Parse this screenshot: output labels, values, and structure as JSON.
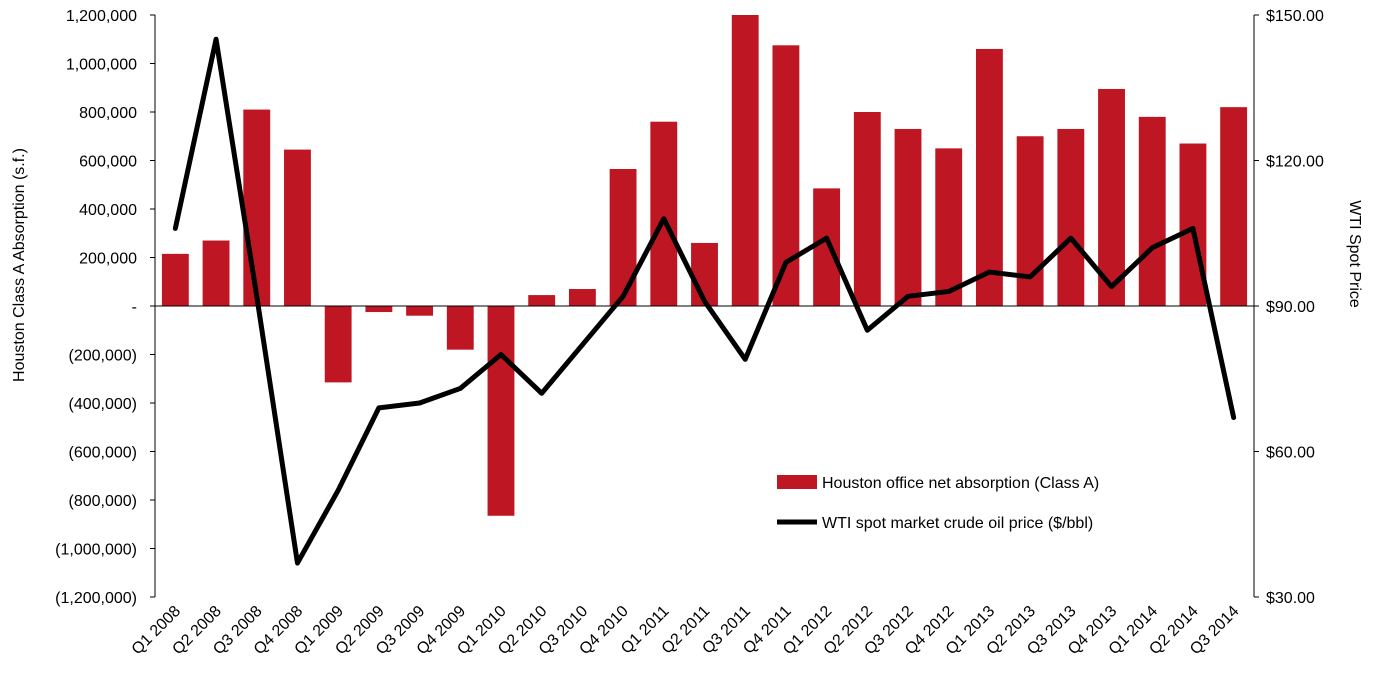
{
  "chart_data": {
    "type": "bar",
    "categories": [
      "Q1 2008",
      "Q2 2008",
      "Q3 2008",
      "Q4 2008",
      "Q1 2009",
      "Q2 2009",
      "Q3 2009",
      "Q4 2009",
      "Q1 2010",
      "Q2 2010",
      "Q3 2010",
      "Q4 2010",
      "Q1 2011",
      "Q2 2011",
      "Q3 2011",
      "Q4 2011",
      "Q1 2012",
      "Q2 2012",
      "Q3 2012",
      "Q4 2012",
      "Q1 2013",
      "Q2 2013",
      "Q3 2013",
      "Q4 2013",
      "Q1 2014",
      "Q2 2014",
      "Q3 2014"
    ],
    "series": [
      {
        "name": "Houston office net absorption (Class A)",
        "type": "bar",
        "axis": "left",
        "color": "#BE1622",
        "values": [
          215000,
          270000,
          810000,
          645000,
          -315000,
          -25000,
          -40000,
          -180000,
          -865000,
          45000,
          70000,
          565000,
          760000,
          260000,
          1200000,
          1075000,
          485000,
          800000,
          730000,
          650000,
          1060000,
          700000,
          730000,
          895000,
          780000,
          670000,
          820000
        ]
      },
      {
        "name": "WTI spot market crude oil price ($/bbl)",
        "type": "line",
        "axis": "right",
        "color": "#000000",
        "values": [
          106,
          145,
          92,
          37,
          52,
          69,
          70,
          73,
          80,
          72,
          82,
          92,
          108,
          91,
          79,
          99,
          104,
          85,
          92,
          93,
          97,
          96,
          104,
          94,
          102,
          106,
          67
        ]
      }
    ],
    "axes": {
      "left": {
        "label": "Houston Class A Absorption (s.f.)",
        "min": -1200000,
        "max": 1200000,
        "ticks": [
          1200000,
          1000000,
          800000,
          600000,
          400000,
          200000,
          0,
          -200000,
          -400000,
          -600000,
          -800000,
          -1000000,
          -1200000
        ],
        "tick_labels": [
          "1,200,000",
          "1,000,000",
          "800,000",
          "600,000",
          "400,000",
          "200,000",
          "-",
          "(200,000)",
          "(400,000)",
          "(600,000)",
          "(800,000)",
          "(1,000,000)",
          "(1,200,000)"
        ]
      },
      "right": {
        "label": "WTI Spot Price",
        "min": 30,
        "max": 150,
        "ticks": [
          150,
          120,
          90,
          60,
          30
        ],
        "tick_labels": [
          "$150.00",
          "$120.00",
          "$90.00",
          "$60.00",
          "$30.00"
        ]
      }
    },
    "grid": false,
    "legend_position": "lower-right"
  }
}
